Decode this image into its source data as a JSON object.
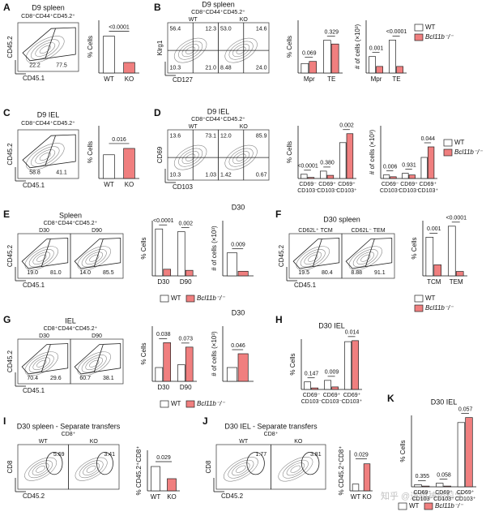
{
  "panels": [
    {
      "label": "A",
      "flow": {
        "title": "D9 spleen",
        "subtitle": "CD8⁺CD44⁺CD45.2⁺",
        "x_label": "CD45.1",
        "y_label": "CD45.2",
        "plots": [
          {
            "gates": [
              "22.2",
              "77.5"
            ]
          }
        ]
      }
    },
    {
      "label": "B",
      "flow": {
        "title": "D9 spleen",
        "subtitle": "CD8⁺CD44⁺CD45.2⁺",
        "x_label": "CD127",
        "y_label": "Klrg1",
        "plots": [
          {
            "name": "WT",
            "gates": [
              "56.4",
              "12.3",
              "10.3",
              "21.0"
            ]
          },
          {
            "name": "KO",
            "gates": [
              "53.0",
              "14.6",
              "8.48",
              "24.0"
            ]
          }
        ]
      }
    },
    {
      "label": "C",
      "flow": {
        "title": "D9 IEL",
        "subtitle": "CD8⁺CD44⁺CD45.2⁺",
        "x_label": "CD45.1",
        "y_label": "CD45.2",
        "plots": [
          {
            "gates": [
              "58.8",
              "41.1"
            ]
          }
        ]
      }
    },
    {
      "label": "D",
      "flow": {
        "title": "D9 IEL",
        "subtitle": "CD8⁺CD44⁺CD45.2⁺",
        "x_label": "CD103",
        "y_label": "CD69",
        "plots": [
          {
            "name": "WT",
            "gates": [
              "13.6",
              "73.1",
              "10.3",
              "1.03"
            ]
          },
          {
            "name": "KO",
            "gates": [
              "12.0",
              "85.9",
              "1.42",
              "0.67"
            ]
          }
        ]
      }
    },
    {
      "label": "E",
      "flow": {
        "title": "Spleen",
        "subtitle": "CD8⁺CD44⁺CD45.2⁺",
        "x_label": "CD45.1",
        "y_label": "CD45.2",
        "plots": [
          {
            "name": "D30",
            "gates": [
              "19.0",
              "81.0"
            ]
          },
          {
            "name": "D90",
            "gates": [
              "14.0",
              "85.5"
            ]
          }
        ]
      }
    },
    {
      "label": "F",
      "flow": {
        "title": "D30 spleen",
        "x_label": "CD45.1",
        "y_label": "CD45.2",
        "plots": [
          {
            "name": "CD62L⁺ TCM",
            "gates": [
              "19.5",
              "80.4"
            ]
          },
          {
            "name": "CD62L⁻ TEM",
            "gates": [
              "8.88",
              "91.1"
            ]
          }
        ]
      }
    },
    {
      "label": "G",
      "flow": {
        "title": "IEL",
        "subtitle": "CD8⁺CD44⁺CD45.2⁺",
        "x_label": "CD45.1",
        "y_label": "CD45.2",
        "plots": [
          {
            "name": "D30",
            "gates": [
              "70.4",
              "29.6"
            ]
          },
          {
            "name": "D90",
            "gates": [
              "60.7",
              "38.1"
            ]
          }
        ]
      }
    },
    {
      "label": "H"
    },
    {
      "label": "I",
      "flow": {
        "title": "D30 spleen - Separate transfers",
        "subtitle": "CD8⁺",
        "x_label": "CD45.2",
        "y_label": "CD8",
        "plots": [
          {
            "name": "WT",
            "gates": [
              "5.69"
            ]
          },
          {
            "name": "KO",
            "gates": [
              "3.41"
            ]
          }
        ]
      }
    },
    {
      "label": "J",
      "flow": {
        "title": "D30 IEL - Separate transfers",
        "subtitle": "CD8⁺",
        "x_label": "CD45.2",
        "y_label": "CD8",
        "plots": [
          {
            "name": "WT",
            "gates": [
              "1.77"
            ]
          },
          {
            "name": "KO",
            "gates": [
              "3.81"
            ]
          }
        ]
      }
    },
    {
      "label": "K"
    }
  ],
  "chart_data": [
    {
      "type": "bar",
      "y_label": "% Cells",
      "categories": [
        "WT",
        "KO"
      ],
      "values": [
        70,
        20
      ],
      "colors": [
        "#ffffff",
        "#f07f7f"
      ],
      "pvalues": [
        "<0.0001"
      ],
      "ylim": [
        0,
        100
      ]
    },
    {
      "type": "bar",
      "y_label": "% Cells",
      "categories": [
        "Mpr",
        "TE"
      ],
      "series": [
        {
          "color": "#ffffff",
          "values": [
            18,
            62
          ]
        },
        {
          "color": "#f07f7f",
          "values": [
            22,
            55
          ]
        }
      ],
      "pvalues": [
        "0.069",
        "0.329"
      ],
      "ylim": [
        0,
        100
      ]
    },
    {
      "type": "bar",
      "y_label": "# of cells (×10³)",
      "categories": [
        "Mpr",
        "TE"
      ],
      "series": [
        {
          "name": "WT",
          "color": "#ffffff",
          "values": [
            5,
            10
          ]
        },
        {
          "name": "Bcl11b⁻/⁻",
          "color": "#f07f7f",
          "values": [
            2,
            2
          ]
        }
      ],
      "pvalues": [
        "0.001",
        "<0.0001"
      ],
      "ylim": [
        0,
        16
      ],
      "legend": true
    },
    {
      "type": "bar",
      "y_label": "% Cells",
      "categories": [
        "WT",
        "KO"
      ],
      "values": [
        45,
        57
      ],
      "colors": [
        "#ffffff",
        "#f07f7f"
      ],
      "pvalues": [
        "0.016"
      ],
      "ylim": [
        0,
        100
      ]
    },
    {
      "type": "bar",
      "y_label": "% Cells",
      "categories": [
        [
          "CD69⁻",
          "CD103⁻"
        ],
        [
          "CD69⁺",
          "CD103⁻"
        ],
        [
          "CD69⁺",
          "CD103⁺"
        ]
      ],
      "series": [
        {
          "color": "#ffffff",
          "values": [
            8,
            14,
            68
          ]
        },
        {
          "color": "#f07f7f",
          "values": [
            2,
            6,
            85
          ]
        }
      ],
      "pvalues": [
        "<0.0001",
        "0.380",
        "0.002"
      ],
      "ylim": [
        0,
        100
      ]
    },
    {
      "type": "bar",
      "y_label": "# of cells (×10³)",
      "categories": [
        [
          "CD69⁻",
          "CD103⁻"
        ],
        [
          "CD69⁺",
          "CD103⁻"
        ],
        [
          "CD69⁺",
          "CD103⁺"
        ]
      ],
      "series": [
        {
          "name": "WT",
          "color": "#ffffff",
          "values": [
            1,
            1.5,
            6
          ]
        },
        {
          "name": "Bcl11b⁻/⁻",
          "color": "#f07f7f",
          "values": [
            0.5,
            1,
            9
          ]
        }
      ],
      "pvalues": [
        "0.006",
        "0.931",
        "0.044"
      ],
      "ylim": [
        0,
        15
      ],
      "legend": true
    },
    {
      "type": "bar",
      "y_label": "% Cells",
      "categories": [
        "D30",
        "D90"
      ],
      "series": [
        {
          "name": "WT",
          "color": "#ffffff",
          "values": [
            85,
            80
          ]
        },
        {
          "name": "Bcl11b⁻/⁻",
          "color": "#f07f7f",
          "values": [
            12,
            10
          ]
        }
      ],
      "pvalues": [
        "<0.0001",
        "0.002"
      ],
      "ylim": [
        0,
        100
      ],
      "legend": true
    },
    {
      "type": "bar",
      "title": "D30",
      "y_label": "# of cells (×10³)",
      "categories": [
        null
      ],
      "series": [
        {
          "color": "#ffffff",
          "values": [
            2.5
          ]
        },
        {
          "color": "#f07f7f",
          "values": [
            0.5
          ]
        }
      ],
      "pvalues": [
        "0.009"
      ],
      "ylim": [
        0,
        6
      ]
    },
    {
      "type": "bar",
      "y_label": "% Cells",
      "categories": [
        "TCM",
        "TEM"
      ],
      "series": [
        {
          "name": "WT",
          "color": "#ffffff",
          "values": [
            70,
            90
          ]
        },
        {
          "name": "Bcl11b⁻/⁻",
          "color": "#f07f7f",
          "values": [
            20,
            8
          ]
        }
      ],
      "pvalues": [
        "0.001",
        "<0.0001"
      ],
      "ylim": [
        0,
        100
      ],
      "legend": true
    },
    {
      "type": "bar",
      "y_label": "% Cells",
      "categories": [
        "D30",
        "D90"
      ],
      "series": [
        {
          "name": "WT",
          "color": "#ffffff",
          "values": [
            25,
            30
          ]
        },
        {
          "name": "Bcl11b⁻/⁻",
          "color": "#f07f7f",
          "values": [
            70,
            62
          ]
        }
      ],
      "pvalues": [
        "0.038",
        "0.073"
      ],
      "ylim": [
        0,
        100
      ],
      "legend": true
    },
    {
      "type": "bar",
      "title": "D30",
      "y_label": "# of cells (×10³)",
      "categories": [
        null
      ],
      "series": [
        {
          "color": "#ffffff",
          "values": [
            1.5
          ]
        },
        {
          "color": "#f07f7f",
          "values": [
            3
          ]
        }
      ],
      "pvalues": [
        "0.046"
      ],
      "ylim": [
        0,
        6
      ]
    },
    {
      "type": "bar",
      "title": "D30 IEL",
      "y_label": "% Cells",
      "categories": [
        [
          "CD69⁻",
          "CD103⁻"
        ],
        [
          "CD69⁺",
          "CD103⁻"
        ],
        [
          "CD69⁺",
          "CD103⁺"
        ]
      ],
      "series": [
        {
          "color": "#ffffff",
          "values": [
            15,
            18,
            95
          ]
        },
        {
          "color": "#f07f7f",
          "values": [
            3,
            5,
            97
          ]
        }
      ],
      "pvalues": [
        "0.147",
        "0.009",
        "0.014"
      ],
      "ylim": [
        0,
        100
      ]
    },
    {
      "type": "bar",
      "y_label": "% CD45.2⁺CD8⁺",
      "categories": [
        "WT",
        "KO"
      ],
      "values": [
        6,
        3
      ],
      "colors": [
        "#ffffff",
        "#f07f7f"
      ],
      "pvalues": [
        "0.029"
      ],
      "ylim": [
        0,
        10
      ]
    },
    {
      "type": "bar",
      "y_label": "% CD45.2⁺CD8⁺",
      "categories": [
        "WT",
        "KO"
      ],
      "values": [
        1,
        4
      ],
      "colors": [
        "#ffffff",
        "#f07f7f"
      ],
      "pvalues": [
        "0.029"
      ],
      "ylim": [
        0,
        6
      ]
    },
    {
      "type": "bar",
      "title": "D30 IEL",
      "y_label": "% Cells",
      "categories": [
        [
          "CD69⁻",
          "CD103⁻"
        ],
        [
          "CD69⁺",
          "CD103⁻"
        ],
        [
          "CD69⁺",
          "CD103⁺"
        ]
      ],
      "series": [
        {
          "name": "WT",
          "color": "#ffffff",
          "values": [
            3,
            5,
            90
          ]
        },
        {
          "name": "Bcl11b⁻/⁻",
          "color": "#f07f7f",
          "values": [
            1,
            1,
            97
          ]
        }
      ],
      "pvalues": [
        "0.355",
        "0.058",
        "0.057"
      ],
      "ylim": [
        0,
        100
      ],
      "legend": true
    }
  ],
  "watermark": "知乎 @逻辑神经科学"
}
